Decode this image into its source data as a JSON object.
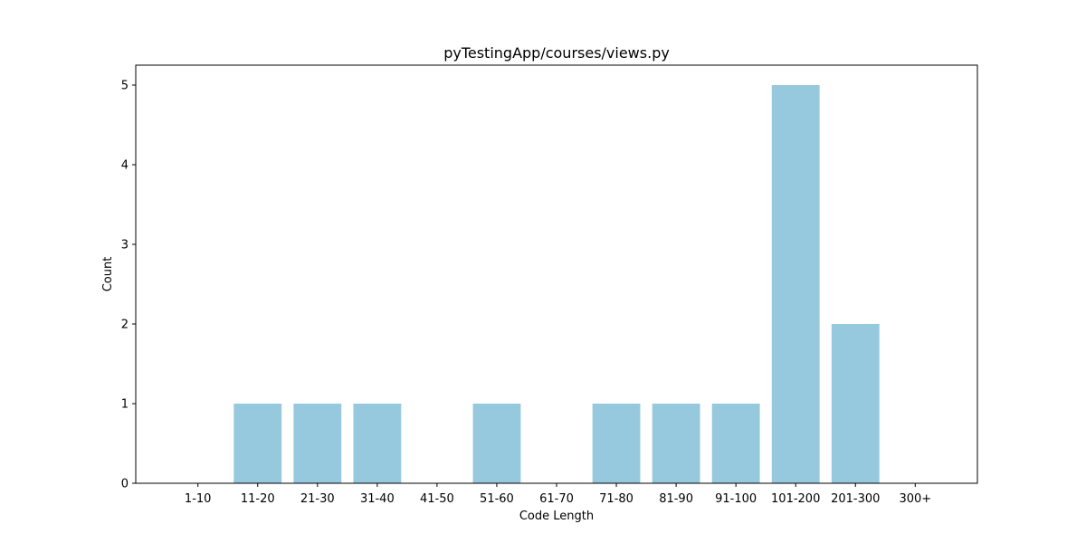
{
  "chart_data": {
    "type": "bar",
    "title": "pyTestingApp/courses/views.py",
    "xlabel": "Code Length",
    "ylabel": "Count",
    "categories": [
      "1-10",
      "11-20",
      "21-30",
      "31-40",
      "41-50",
      "51-60",
      "61-70",
      "71-80",
      "81-90",
      "91-100",
      "101-200",
      "201-300",
      "300+"
    ],
    "values": [
      0,
      1,
      1,
      1,
      0,
      1,
      0,
      1,
      1,
      1,
      5,
      2,
      0
    ],
    "ylim": [
      0,
      5.25
    ],
    "yticks": [
      0,
      1,
      2,
      3,
      4,
      5
    ],
    "bar_color": "#96c9dd",
    "grid": false,
    "legend": "none"
  }
}
